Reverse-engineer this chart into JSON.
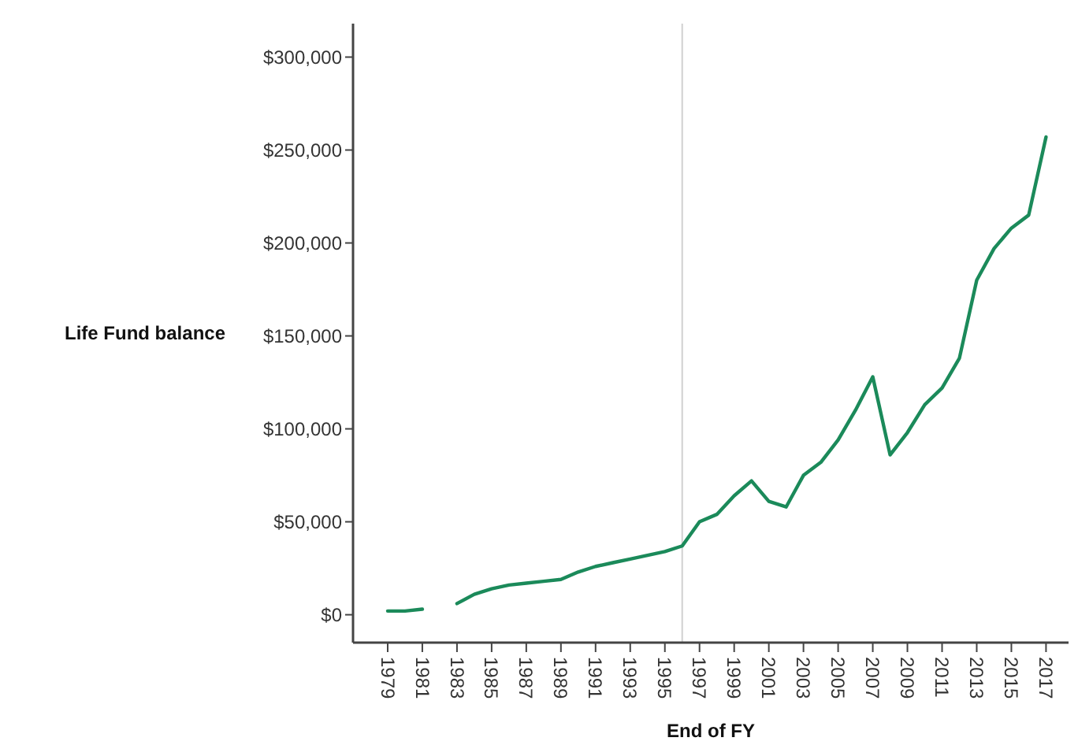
{
  "chart_data": {
    "type": "line",
    "xlabel": "End of FY",
    "ylabel": "Life Fund balance",
    "x": [
      1979,
      1980,
      1981,
      1983,
      1984,
      1985,
      1986,
      1987,
      1988,
      1989,
      1990,
      1991,
      1992,
      1993,
      1994,
      1995,
      1996,
      1997,
      1998,
      1999,
      2000,
      2001,
      2002,
      2003,
      2004,
      2005,
      2006,
      2007,
      2008,
      2009,
      2010,
      2011,
      2012,
      2013,
      2014,
      2015,
      2016,
      2017
    ],
    "series": [
      {
        "color": "#1b8a5a",
        "values": [
          2000,
          2000,
          3000,
          6000,
          11000,
          14000,
          16000,
          17000,
          18000,
          19000,
          23000,
          26000,
          28000,
          30000,
          32000,
          34000,
          37000,
          50000,
          54000,
          64000,
          72000,
          61000,
          58000,
          75000,
          82000,
          94000,
          110000,
          128000,
          86000,
          98000,
          113000,
          122000,
          138000,
          180000,
          197000,
          208000,
          215000,
          257000
        ]
      }
    ],
    "xlim": [
      1977,
      2018.3
    ],
    "xticks": [
      1979,
      1981,
      1983,
      1985,
      1987,
      1989,
      1991,
      1993,
      1995,
      1997,
      1999,
      2001,
      2003,
      2005,
      2007,
      2009,
      2011,
      2013,
      2015,
      2017
    ],
    "ylim": [
      -15000,
      318000
    ],
    "yticks": [
      {
        "value": 0,
        "label": "$0"
      },
      {
        "value": 50000,
        "label": "$50,000"
      },
      {
        "value": 100000,
        "label": "$100,000"
      },
      {
        "value": 150000,
        "label": "$150,000"
      },
      {
        "value": 200000,
        "label": "$200,000"
      },
      {
        "value": 250000,
        "label": "$250,000"
      },
      {
        "value": 300000,
        "label": "$300,000"
      }
    ],
    "ref_lines": [
      {
        "axis": "x",
        "value": 1996,
        "color": "#d0d0d0"
      }
    ],
    "grid": false,
    "marker": "none",
    "line_style": "solid"
  }
}
